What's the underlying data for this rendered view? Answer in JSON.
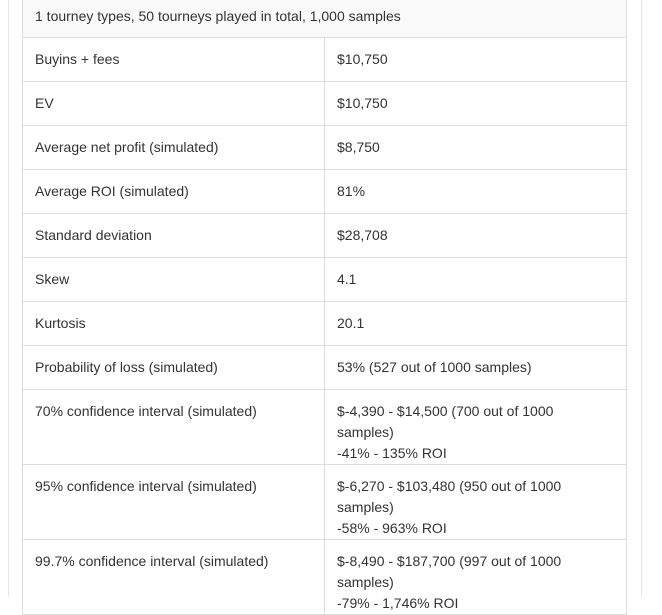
{
  "summary": "1 tourney types, 50 tourneys played in total, 1,000 samples",
  "rows": [
    {
      "label": "Buyins + fees",
      "value": "$10,750"
    },
    {
      "label": "EV",
      "value": "$10,750"
    },
    {
      "label": "Average net profit (simulated)",
      "value": "$8,750"
    },
    {
      "label": "Average ROI (simulated)",
      "value": "81%"
    },
    {
      "label": "Standard deviation",
      "value": "$28,708"
    },
    {
      "label": "Skew",
      "value": "4.1"
    },
    {
      "label": "Kurtosis",
      "value": "20.1"
    },
    {
      "label": "Probability of loss (simulated)",
      "value": "53% (527 out of 1000 samples)"
    },
    {
      "label": "70% confidence interval (simulated)",
      "value": "$-4,390 - $14,500 (700 out of 1000 samples)",
      "value2": "-41% - 135% ROI"
    },
    {
      "label": "95% confidence interval (simulated)",
      "value": "$-6,270 - $103,480 (950 out of 1000 samples)",
      "value2": "-58% - 963% ROI"
    },
    {
      "label": "99.7% confidence interval (simulated)",
      "value": "$-8,490 - $187,700 (997 out of 1000 samples)",
      "value2": "-79% - 1,746% ROI"
    }
  ]
}
